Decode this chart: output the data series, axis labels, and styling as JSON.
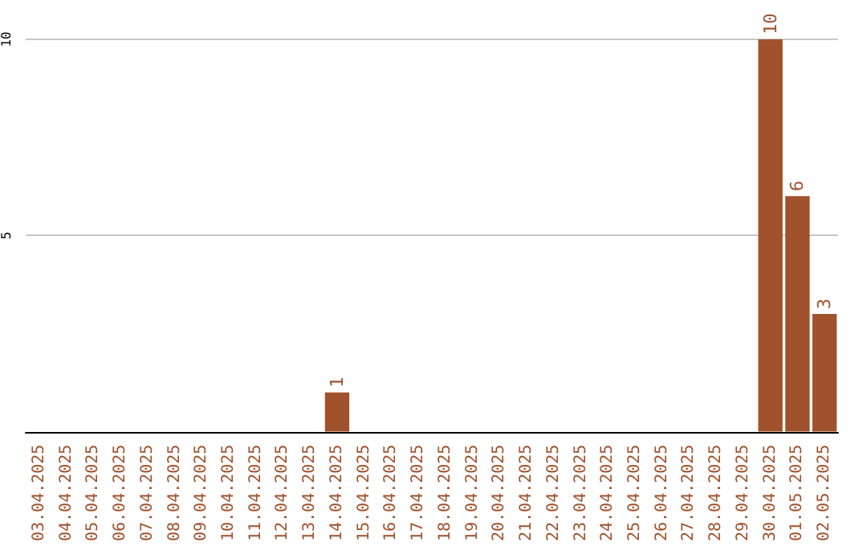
{
  "chart_data": {
    "type": "bar",
    "categories": [
      "03.04.2025",
      "04.04.2025",
      "05.04.2025",
      "06.04.2025",
      "07.04.2025",
      "08.04.2025",
      "09.04.2025",
      "10.04.2025",
      "11.04.2025",
      "12.04.2025",
      "13.04.2025",
      "14.04.2025",
      "15.04.2025",
      "16.04.2025",
      "17.04.2025",
      "18.04.2025",
      "19.04.2025",
      "20.04.2025",
      "21.04.2025",
      "22.04.2025",
      "23.04.2025",
      "24.04.2025",
      "25.04.2025",
      "26.04.2025",
      "27.04.2025",
      "28.04.2025",
      "29.04.2025",
      "30.04.2025",
      "01.05.2025",
      "02.05.2025"
    ],
    "values": [
      0,
      0,
      0,
      0,
      0,
      0,
      0,
      0,
      0,
      0,
      0,
      1,
      0,
      0,
      0,
      0,
      0,
      0,
      0,
      0,
      0,
      0,
      0,
      0,
      0,
      0,
      0,
      10,
      6,
      3
    ],
    "value_labels": [
      null,
      null,
      null,
      null,
      null,
      null,
      null,
      null,
      null,
      null,
      null,
      "1",
      null,
      null,
      null,
      null,
      null,
      null,
      null,
      null,
      null,
      null,
      null,
      null,
      null,
      null,
      null,
      "10",
      "6",
      "3"
    ],
    "color": "#a0522d",
    "ylim": [
      0,
      10.1
    ],
    "yticks": [
      {
        "value": 0,
        "label": null
      },
      5,
      10
    ],
    "grid": "y"
  }
}
